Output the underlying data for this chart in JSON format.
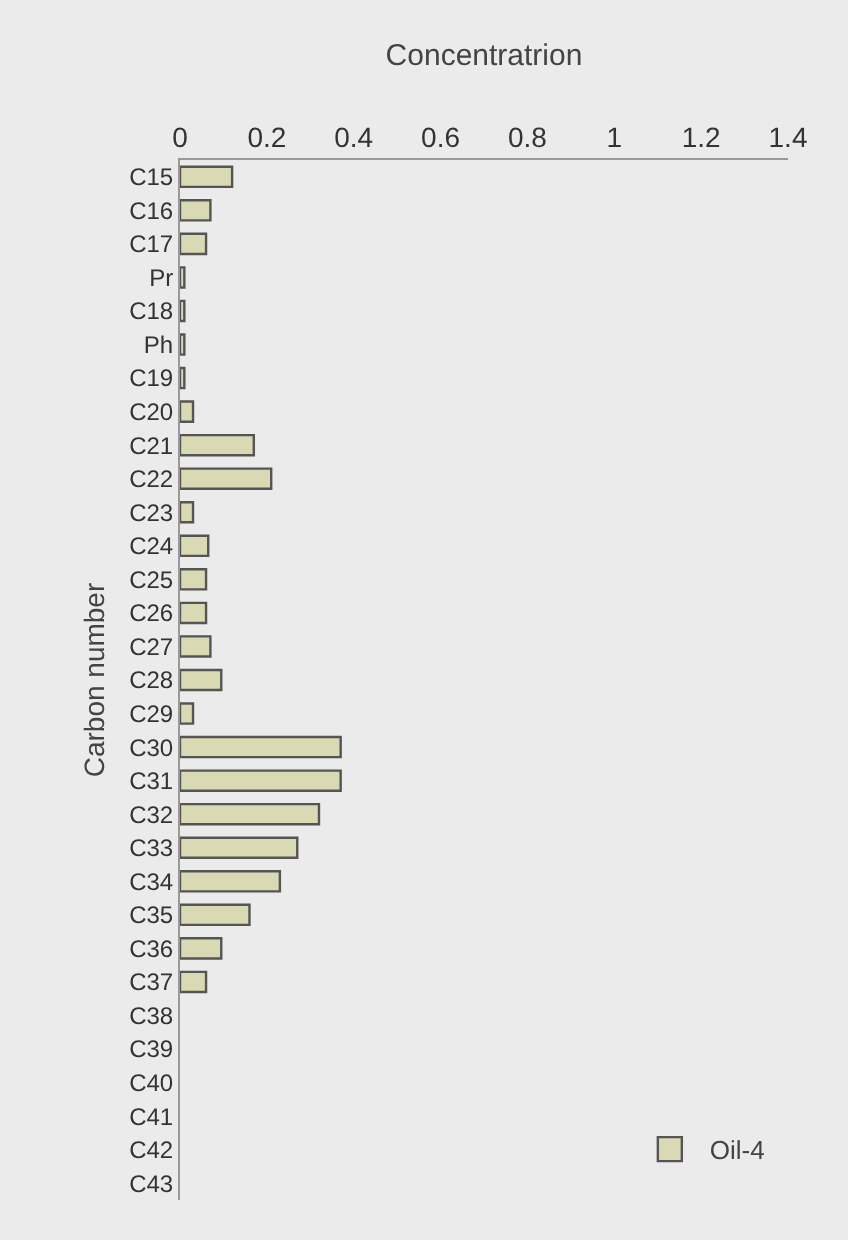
{
  "chart_data": {
    "type": "bar",
    "orientation": "horizontal",
    "xlabel": "Concentratrion",
    "ylabel": "Carbon number",
    "categories": [
      "C15",
      "C16",
      "C17",
      "Pr",
      "C18",
      "Ph",
      "C19",
      "C20",
      "C21",
      "C22",
      "C23",
      "C24",
      "C25",
      "C26",
      "C27",
      "C28",
      "C29",
      "C30",
      "C31",
      "C32",
      "C33",
      "C34",
      "C35",
      "C36",
      "C37",
      "C38",
      "C39",
      "C40",
      "C41",
      "C42",
      "C43"
    ],
    "series": [
      {
        "name": "Oil-4",
        "color": "#d9d9b4",
        "values": [
          0.12,
          0.07,
          0.06,
          0.01,
          0.01,
          0.01,
          0.01,
          0.03,
          0.17,
          0.21,
          0.03,
          0.065,
          0.06,
          0.06,
          0.07,
          0.095,
          0.03,
          0.37,
          0.37,
          0.32,
          0.27,
          0.23,
          0.16,
          0.095,
          0.06,
          0,
          0,
          0,
          0,
          0,
          0
        ]
      }
    ],
    "xlim": [
      0,
      1.4
    ],
    "xticks": [
      0,
      0.2,
      0.4,
      0.6,
      0.8,
      1,
      1.2,
      1.4
    ],
    "grid": false,
    "legend": "bottom right"
  }
}
